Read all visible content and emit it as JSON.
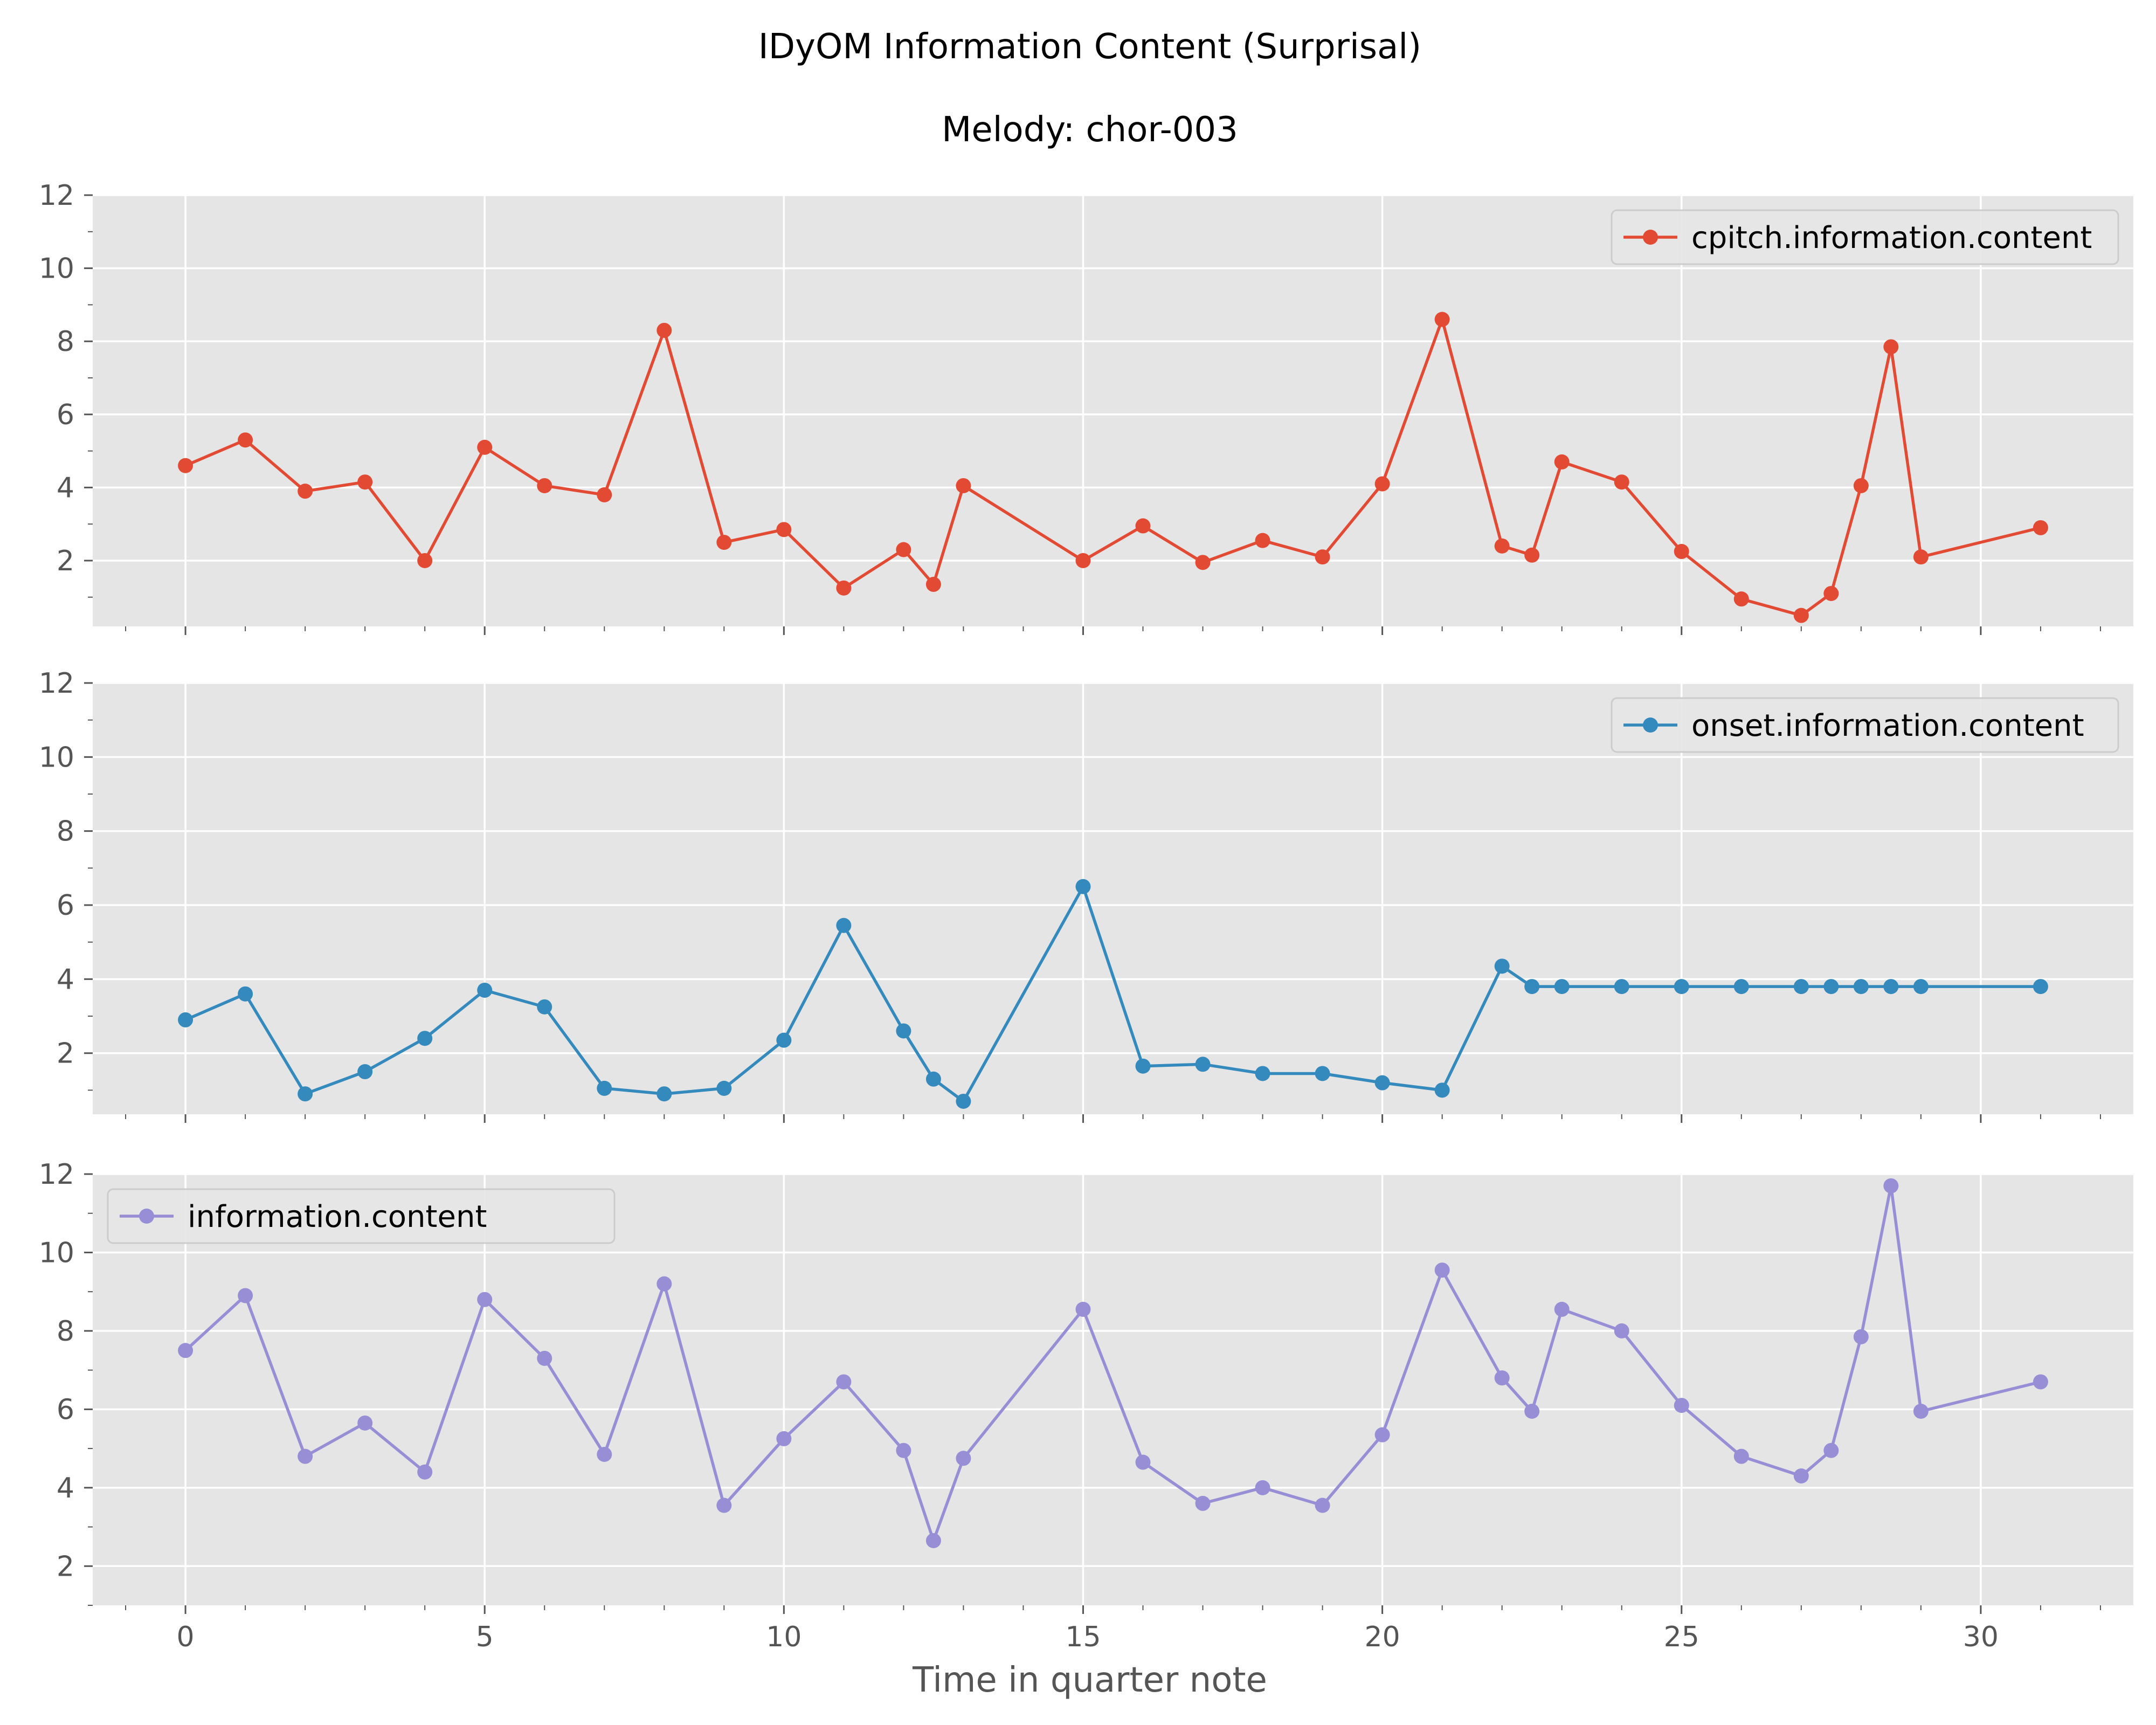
{
  "figure": {
    "suptitle": "IDyOM Information Content (Surprisal)",
    "subtitle": "Melody: chor-003",
    "xlabel": "Time in quarter note",
    "background": "#ffffff",
    "axes_background": "#e5e5e5",
    "grid_color": "#ffffff"
  },
  "chart_data": [
    {
      "type": "line",
      "title": "",
      "xlabel": "",
      "ylabel": "",
      "xlim": [
        -1.55,
        32.55
      ],
      "ylim": [
        0.2,
        12.0
      ],
      "xticks": [
        0,
        5,
        10,
        15,
        20,
        25,
        30
      ],
      "xtick_labels": [],
      "yticks": [
        2,
        4,
        6,
        8,
        10,
        12
      ],
      "ytick_labels": [
        "2",
        "4",
        "6",
        "8",
        "10",
        "12"
      ],
      "grid": true,
      "legend_position": "top-right",
      "series": [
        {
          "name": "cpitch.information.content",
          "color": "#E24A33",
          "marker": "circle",
          "x": [
            0,
            1,
            2,
            3,
            4,
            5,
            6,
            7,
            8,
            9,
            10,
            11,
            12,
            12.5,
            13,
            15,
            16,
            17,
            18,
            19,
            20,
            21,
            22,
            22.5,
            23,
            24,
            25,
            26,
            27,
            27.5,
            28,
            28.5,
            29,
            31
          ],
          "y": [
            4.6,
            5.3,
            3.9,
            4.15,
            2.0,
            5.1,
            4.05,
            3.8,
            8.3,
            2.5,
            2.85,
            1.25,
            2.3,
            1.35,
            4.05,
            2.0,
            2.95,
            1.95,
            2.55,
            2.1,
            4.1,
            8.6,
            2.4,
            2.15,
            4.7,
            4.15,
            2.25,
            0.95,
            0.5,
            1.1,
            4.05,
            7.85,
            2.1,
            2.9
          ]
        }
      ]
    },
    {
      "type": "line",
      "title": "",
      "xlabel": "",
      "ylabel": "",
      "xlim": [
        -1.55,
        32.55
      ],
      "ylim": [
        0.35,
        12.0
      ],
      "xticks": [
        0,
        5,
        10,
        15,
        20,
        25,
        30
      ],
      "xtick_labels": [],
      "yticks": [
        2,
        4,
        6,
        8,
        10,
        12
      ],
      "ytick_labels": [
        "2",
        "4",
        "6",
        "8",
        "10",
        "12"
      ],
      "grid": true,
      "legend_position": "top-right",
      "series": [
        {
          "name": "onset.information.content",
          "color": "#348ABD",
          "marker": "circle",
          "x": [
            0,
            1,
            2,
            3,
            4,
            5,
            6,
            7,
            8,
            9,
            10,
            11,
            12,
            12.5,
            13,
            15,
            16,
            17,
            18,
            19,
            20,
            21,
            22,
            22.5,
            23,
            24,
            25,
            26,
            27,
            27.5,
            28,
            28.5,
            29,
            31
          ],
          "y": [
            2.9,
            3.6,
            0.9,
            1.5,
            2.4,
            3.7,
            3.25,
            1.05,
            0.9,
            1.05,
            2.35,
            5.45,
            2.6,
            1.3,
            0.7,
            6.5,
            1.65,
            1.7,
            1.45,
            1.45,
            1.2,
            1.0,
            4.35,
            3.8,
            3.8,
            3.8,
            3.8,
            3.8,
            3.8,
            3.8,
            3.8,
            3.8,
            3.8,
            3.8
          ]
        }
      ]
    },
    {
      "type": "line",
      "title": "",
      "xlabel": "Time in quarter note",
      "ylabel": "",
      "xlim": [
        -1.55,
        32.55
      ],
      "ylim": [
        1.0,
        12.0
      ],
      "xticks": [
        0,
        5,
        10,
        15,
        20,
        25,
        30
      ],
      "xtick_labels": [
        "0",
        "5",
        "10",
        "15",
        "20",
        "25",
        "30"
      ],
      "yticks": [
        2,
        4,
        6,
        8,
        10,
        12
      ],
      "ytick_labels": [
        "2",
        "4",
        "6",
        "8",
        "10",
        "12"
      ],
      "grid": true,
      "legend_position": "top-left",
      "series": [
        {
          "name": "information.content",
          "color": "#988ED5",
          "marker": "circle",
          "x": [
            0,
            1,
            2,
            3,
            4,
            5,
            6,
            7,
            8,
            9,
            10,
            11,
            12,
            12.5,
            13,
            15,
            16,
            17,
            18,
            19,
            20,
            21,
            22,
            22.5,
            23,
            24,
            25,
            26,
            27,
            27.5,
            28,
            28.5,
            29,
            31
          ],
          "y": [
            7.5,
            8.9,
            4.8,
            5.65,
            4.4,
            8.8,
            7.3,
            4.85,
            9.2,
            3.55,
            5.25,
            6.7,
            4.95,
            2.65,
            4.75,
            8.55,
            4.65,
            3.6,
            4.0,
            3.55,
            5.35,
            9.55,
            6.8,
            5.95,
            8.55,
            8.0,
            6.1,
            4.8,
            4.3,
            4.95,
            7.85,
            11.7,
            5.95,
            6.7
          ]
        }
      ]
    }
  ]
}
